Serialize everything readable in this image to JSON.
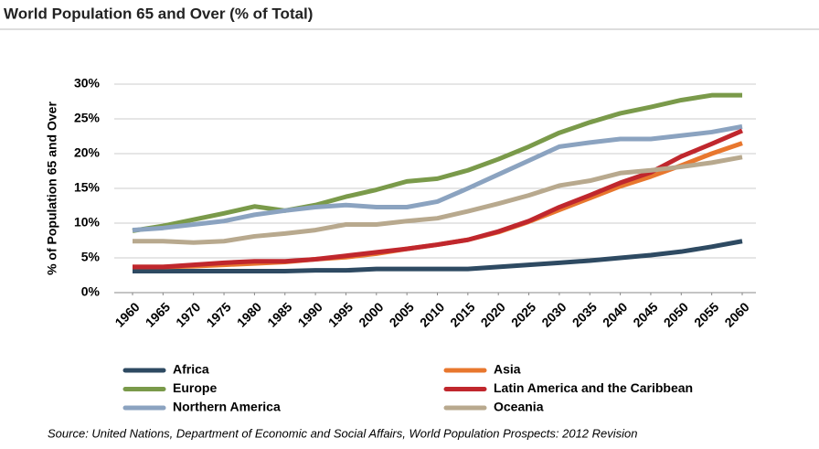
{
  "chart_data": {
    "type": "line",
    "title": "World Population 65 and Over (% of Total)",
    "y_label": "% of Population 65 and Over",
    "source": "Source: United Nations, Department of Economic and Social Affairs, World Population Prospects: 2012 Revision",
    "x": [
      1960,
      1965,
      1970,
      1975,
      1980,
      1985,
      1990,
      1995,
      2000,
      2005,
      2010,
      2015,
      2020,
      2025,
      2030,
      2035,
      2040,
      2045,
      2050,
      2055,
      2060
    ],
    "xlim": [
      1960,
      2060
    ],
    "xticks": [
      1960,
      1965,
      1970,
      1975,
      1980,
      1985,
      1990,
      1995,
      2000,
      2005,
      2010,
      2015,
      2020,
      2025,
      2030,
      2035,
      2040,
      2045,
      2050,
      2055,
      2060
    ],
    "ylim": [
      0,
      30
    ],
    "yticks": [
      {
        "value": 0,
        "label": "0%"
      },
      {
        "value": 5,
        "label": "5%"
      },
      {
        "value": 10,
        "label": "10%"
      },
      {
        "value": 15,
        "label": "15%"
      },
      {
        "value": 20,
        "label": "20%"
      },
      {
        "value": 25,
        "label": "25%"
      },
      {
        "value": 30,
        "label": "30%"
      }
    ],
    "grid": true,
    "legend": "bottom",
    "series": [
      {
        "name": "Africa",
        "color": "#2e4a62",
        "values": [
          3.1,
          3.1,
          3.1,
          3.1,
          3.1,
          3.1,
          3.2,
          3.2,
          3.4,
          3.4,
          3.4,
          3.4,
          3.7,
          4.0,
          4.3,
          4.6,
          5.0,
          5.4,
          5.9,
          6.6,
          7.4
        ]
      },
      {
        "name": "Europe",
        "color": "#7a9a4a",
        "values": [
          8.9,
          9.6,
          10.5,
          11.4,
          12.4,
          11.8,
          12.6,
          13.8,
          14.8,
          16.0,
          16.4,
          17.6,
          19.2,
          21.0,
          23.0,
          24.5,
          25.8,
          26.7,
          27.7,
          28.4,
          28.4
        ]
      },
      {
        "name": "Northern America",
        "color": "#8ba3c0",
        "values": [
          9.0,
          9.3,
          9.8,
          10.3,
          11.2,
          11.8,
          12.3,
          12.6,
          12.3,
          12.3,
          13.1,
          15.0,
          17.0,
          19.0,
          21.0,
          21.6,
          22.1,
          22.1,
          22.6,
          23.1,
          23.9
        ]
      },
      {
        "name": "Asia",
        "color": "#e8772e",
        "values": [
          3.7,
          3.7,
          3.8,
          4.0,
          4.2,
          4.4,
          4.8,
          5.1,
          5.6,
          6.3,
          6.9,
          7.6,
          8.7,
          10.2,
          11.9,
          13.6,
          15.3,
          16.7,
          18.3,
          20.0,
          21.5
        ]
      },
      {
        "name": "Latin America and the Caribbean",
        "color": "#c0272d",
        "values": [
          3.7,
          3.7,
          4.0,
          4.3,
          4.5,
          4.5,
          4.8,
          5.3,
          5.8,
          6.3,
          6.9,
          7.6,
          8.8,
          10.3,
          12.3,
          14.0,
          15.8,
          17.3,
          19.6,
          21.4,
          23.3
        ]
      },
      {
        "name": "Oceania",
        "color": "#b8a98e",
        "values": [
          7.4,
          7.4,
          7.2,
          7.4,
          8.1,
          8.5,
          9.0,
          9.8,
          9.8,
          10.3,
          10.7,
          11.7,
          12.8,
          14.0,
          15.4,
          16.1,
          17.2,
          17.6,
          18.1,
          18.7,
          19.5
        ]
      }
    ]
  }
}
